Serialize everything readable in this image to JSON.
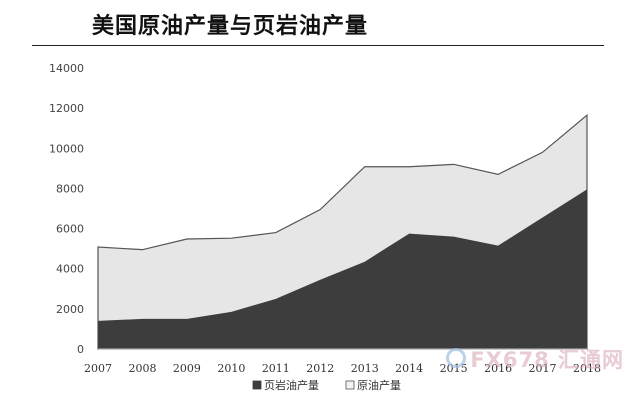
{
  "header": {
    "title": "美国原油产量与页岩油产量"
  },
  "watermark": {
    "text": "FX678 汇通网"
  },
  "chart_data": {
    "type": "area",
    "stacked": false,
    "x": [
      "2007",
      "2008",
      "2009",
      "2010",
      "2011",
      "2012",
      "2013",
      "2014",
      "2015",
      "2016",
      "2017",
      "2018"
    ],
    "series": [
      {
        "name": "原油产量",
        "color": "#e6e6e6",
        "values": [
          5080,
          4950,
          5480,
          5520,
          5800,
          6950,
          9080,
          9080,
          9200,
          8700,
          9800,
          11650
        ]
      },
      {
        "name": "页岩油产量",
        "color": "#3d3d3d",
        "values": [
          1400,
          1500,
          1500,
          1850,
          2500,
          3450,
          4350,
          5750,
          5600,
          5150,
          6550,
          7950
        ]
      }
    ],
    "yticks": [
      "0",
      "2000",
      "4000",
      "6000",
      "8000",
      "10000",
      "12000",
      "14000"
    ],
    "ylim": [
      0,
      14000
    ],
    "legend": {
      "position": "bottom",
      "entries": [
        "页岩油产量",
        "原油产量"
      ]
    },
    "grid": false
  }
}
